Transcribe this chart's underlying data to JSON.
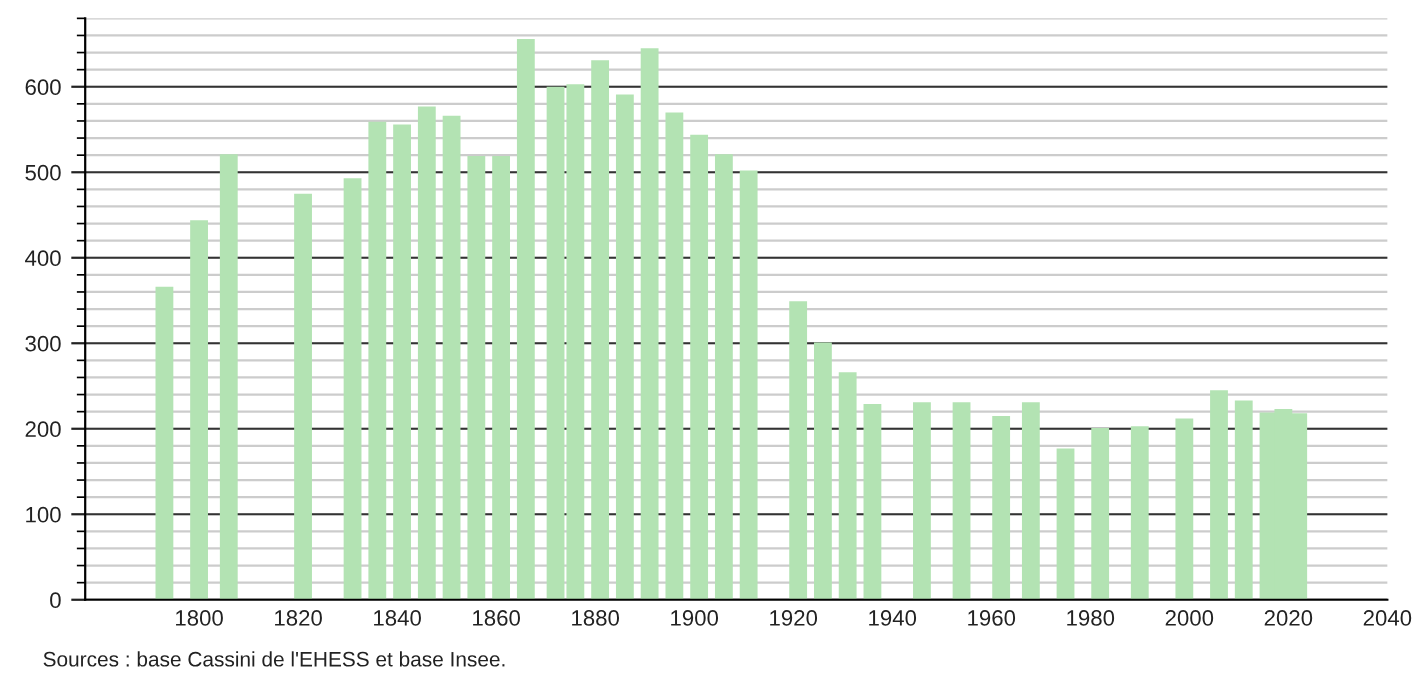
{
  "chart_data": {
    "type": "bar",
    "x": [
      1793,
      1800,
      1806,
      1821,
      1831,
      1836,
      1841,
      1846,
      1851,
      1856,
      1861,
      1866,
      1872,
      1876,
      1881,
      1886,
      1891,
      1896,
      1901,
      1906,
      1911,
      1921,
      1926,
      1931,
      1936,
      1946,
      1954,
      1962,
      1968,
      1975,
      1982,
      1990,
      1999,
      2006,
      2011,
      2016,
      2019,
      2022
    ],
    "series": [
      {
        "color": "#b3e3b3",
        "values": [
          366,
          444,
          521,
          475,
          493,
          559,
          556,
          577,
          566,
          519,
          519,
          656,
          600,
          603,
          631,
          591,
          645,
          570,
          544,
          521,
          502,
          349,
          301,
          266,
          229,
          231,
          231,
          215,
          231,
          177,
          201,
          203,
          212,
          245,
          233,
          219,
          223,
          218
        ]
      }
    ],
    "xlim": [
      1777,
      2040
    ],
    "xticks": [
      1800,
      1820,
      1840,
      1860,
      1880,
      1900,
      1920,
      1940,
      1960,
      1980,
      2000,
      2020,
      2040
    ],
    "ylim": [
      0,
      680
    ],
    "yticks": [
      0,
      100,
      200,
      300,
      400,
      500,
      600
    ],
    "grid": "y",
    "annotations": [
      "Sources : base Cassini de l'EHESS et base Insee."
    ]
  }
}
